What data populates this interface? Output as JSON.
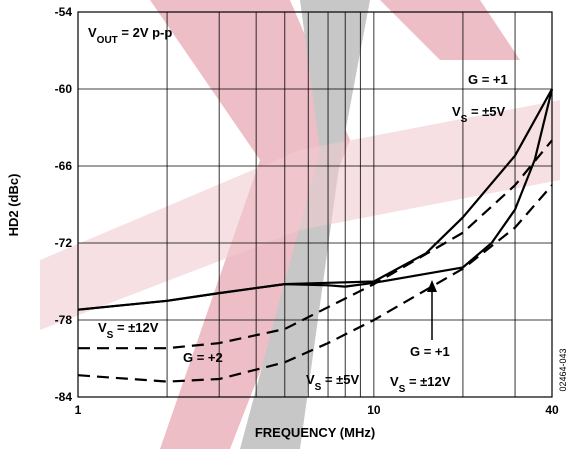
{
  "chart_data": {
    "type": "line",
    "xlabel": "FREQUENCY (MHz)",
    "ylabel": "HD2 (dBc)",
    "xscale": "log",
    "xlim": [
      1,
      40
    ],
    "xticks": [
      1,
      10,
      40
    ],
    "xgrid": [
      2,
      3,
      4,
      5,
      6,
      7,
      8,
      9,
      20,
      30
    ],
    "ylim": [
      -84,
      -54
    ],
    "yticks": [
      -84,
      -78,
      -72,
      -66,
      -60,
      -54
    ],
    "grid": true,
    "series": [
      {
        "color": "#000000",
        "style": "solid",
        "x": [
          1,
          2,
          3,
          5,
          7,
          10,
          15,
          20,
          30,
          40
        ],
        "values": [
          -77.2,
          -76.5,
          -75.9,
          -75.2,
          -75.1,
          -75.0,
          -72.8,
          -70.0,
          -65.2,
          -60.0
        ]
      },
      {
        "color": "#000000",
        "style": "solid",
        "x": [
          1,
          2,
          3,
          5,
          7,
          8,
          10,
          15,
          20,
          25,
          30,
          35,
          40
        ],
        "values": [
          -77.2,
          -76.5,
          -75.9,
          -75.2,
          -75.3,
          -75.4,
          -75.1,
          -74.4,
          -73.9,
          -72.0,
          -69.4,
          -65.5,
          -60.0
        ]
      },
      {
        "color": "#000000",
        "style": "dashed",
        "x": [
          1,
          2,
          3,
          5,
          7,
          10,
          20,
          30,
          40
        ],
        "values": [
          -80.2,
          -80.2,
          -79.8,
          -78.7,
          -77.0,
          -75.2,
          -71.2,
          -67.5,
          -64.0
        ]
      },
      {
        "color": "#000000",
        "style": "dashed",
        "x": [
          1,
          2,
          3,
          5,
          7,
          10,
          20,
          30,
          40
        ],
        "values": [
          -82.3,
          -82.8,
          -82.6,
          -81.3,
          -79.8,
          -78.0,
          -74.0,
          -70.8,
          -67.5
        ]
      }
    ],
    "annotations": [
      {
        "parts": [
          "V",
          "OUT",
          " = 2V p-p"
        ]
      },
      {
        "parts": [
          "G = +1"
        ]
      },
      {
        "parts": [
          "V",
          "S",
          " = ±5V"
        ]
      },
      {
        "parts": [
          "V",
          "S",
          " = ±12V"
        ]
      },
      {
        "parts": [
          "G = +2"
        ]
      },
      {
        "parts": [
          "V",
          "S",
          " = ±5V"
        ]
      },
      {
        "parts": [
          "G = +1"
        ]
      },
      {
        "parts": [
          "V",
          "S",
          " = ±12V"
        ]
      }
    ],
    "figure_id": "02464-043"
  }
}
